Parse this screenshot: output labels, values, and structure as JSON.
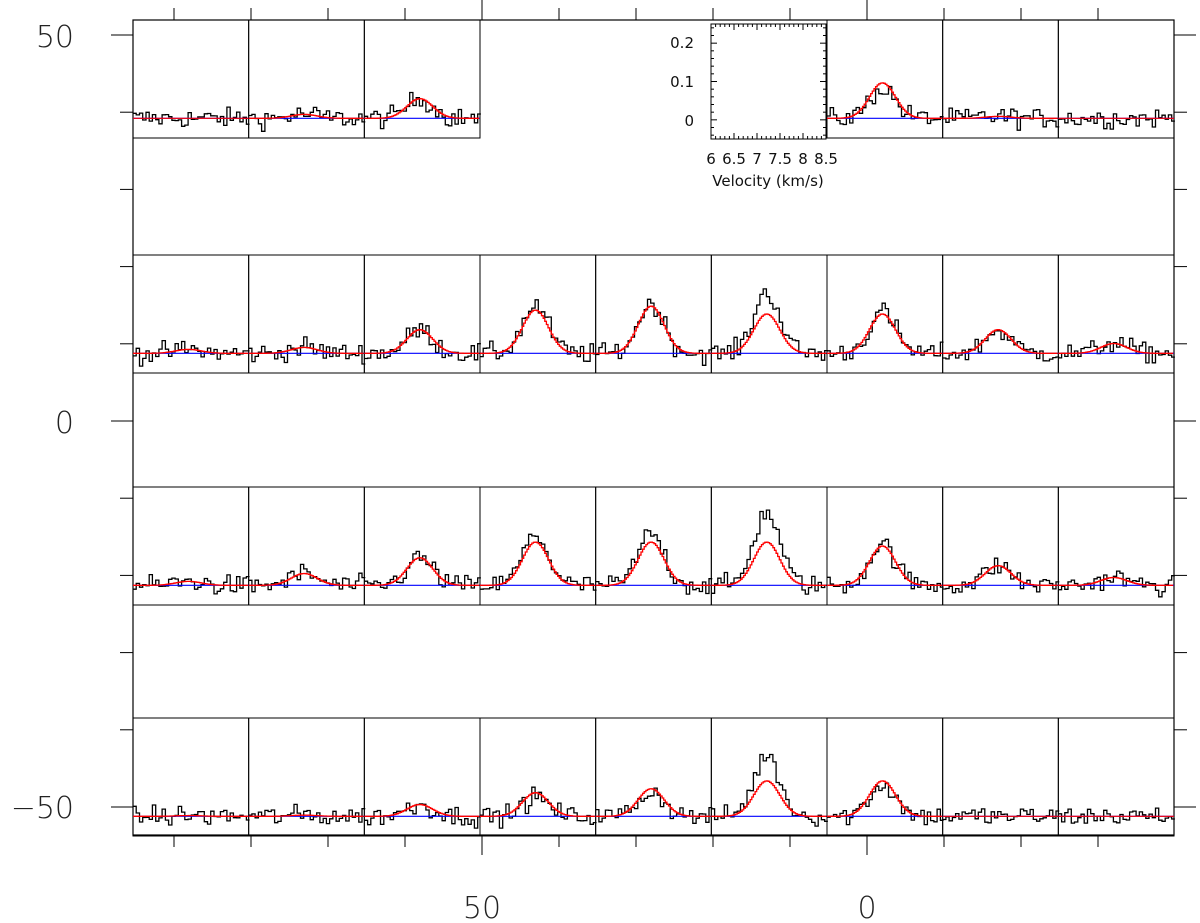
{
  "chart_data": {
    "type": "line",
    "title": "",
    "description_kind": "spectral grid map",
    "outer_axes": {
      "x_ticks": [
        {
          "value": 50,
          "label": "50"
        },
        {
          "value": 0,
          "label": "0"
        }
      ],
      "y_ticks": [
        {
          "value": 50,
          "label": "50"
        },
        {
          "value": 0,
          "label": "0"
        },
        {
          "value": -50,
          "label": "−50"
        }
      ],
      "xlim": [
        95,
        -40
      ],
      "ylim": [
        -53,
        55
      ]
    },
    "grid": {
      "columns": 9,
      "rows": 4,
      "row_centers_y": [
        44,
        14,
        -16,
        -46
      ],
      "column_offsets_x": [
        74,
        59,
        44,
        29,
        14,
        -1,
        -16,
        -31,
        -46
      ],
      "occupied_cells_top_row": [
        0,
        1,
        2,
        6,
        7,
        8
      ]
    },
    "inset": {
      "xlabel": "Velocity (km/s)",
      "x_ticks": [
        "6",
        "6.5",
        "7",
        "7.5",
        "8",
        "8.5"
      ],
      "y_ticks": [
        "0",
        "0.1",
        "0.2"
      ],
      "xlim": [
        6,
        8.5
      ],
      "ylim": [
        -0.05,
        0.25
      ]
    },
    "series_styles": {
      "observed": "#000000",
      "model": "#ff0000",
      "baseline": "#0000ff"
    },
    "model_peaks": [
      [
        0.0,
        0.01,
        0.05,
        0.0,
        0.0,
        0.0,
        0.09,
        0.005,
        0.0
      ],
      [
        0.01,
        0.015,
        0.06,
        0.11,
        0.12,
        0.1,
        0.1,
        0.06,
        0.025
      ],
      [
        0.01,
        0.03,
        0.07,
        0.11,
        0.11,
        0.11,
        0.1,
        0.05,
        0.02
      ],
      [
        0.002,
        0.003,
        0.03,
        0.06,
        0.07,
        0.09,
        0.09,
        0.0,
        0.0
      ]
    ],
    "model_centers_kms": [
      [
        7.2,
        7.2,
        7.2,
        7.2,
        7.2,
        7.2,
        7.2,
        7.2,
        7.2
      ],
      [
        7.2,
        7.2,
        7.2,
        7.2,
        7.2,
        7.2,
        7.2,
        7.2,
        7.2
      ],
      [
        7.2,
        7.2,
        7.2,
        7.2,
        7.2,
        7.2,
        7.2,
        7.2,
        7.2
      ],
      [
        7.2,
        7.2,
        7.2,
        7.2,
        7.2,
        7.2,
        7.2,
        7.2,
        7.2
      ]
    ],
    "model_width_kms": 0.28,
    "observed_extra_peak_scale": [
      [
        0.0,
        0.0,
        0.0,
        0.0,
        0.0,
        0.0,
        0.85,
        0.0,
        0.0
      ],
      [
        0.0,
        0.0,
        0.0,
        1.1,
        1.05,
        1.55,
        1.05,
        0.95,
        1.1
      ],
      [
        0.0,
        0.0,
        0.0,
        1.15,
        1.2,
        1.7,
        1.05,
        1.0,
        1.0
      ],
      [
        0.0,
        0.0,
        0.0,
        0.8,
        0.9,
        1.7,
        0.9,
        0.0,
        0.0
      ]
    ],
    "observed_noise_rms": 0.018,
    "observed_channel_width_kms": 0.07
  }
}
